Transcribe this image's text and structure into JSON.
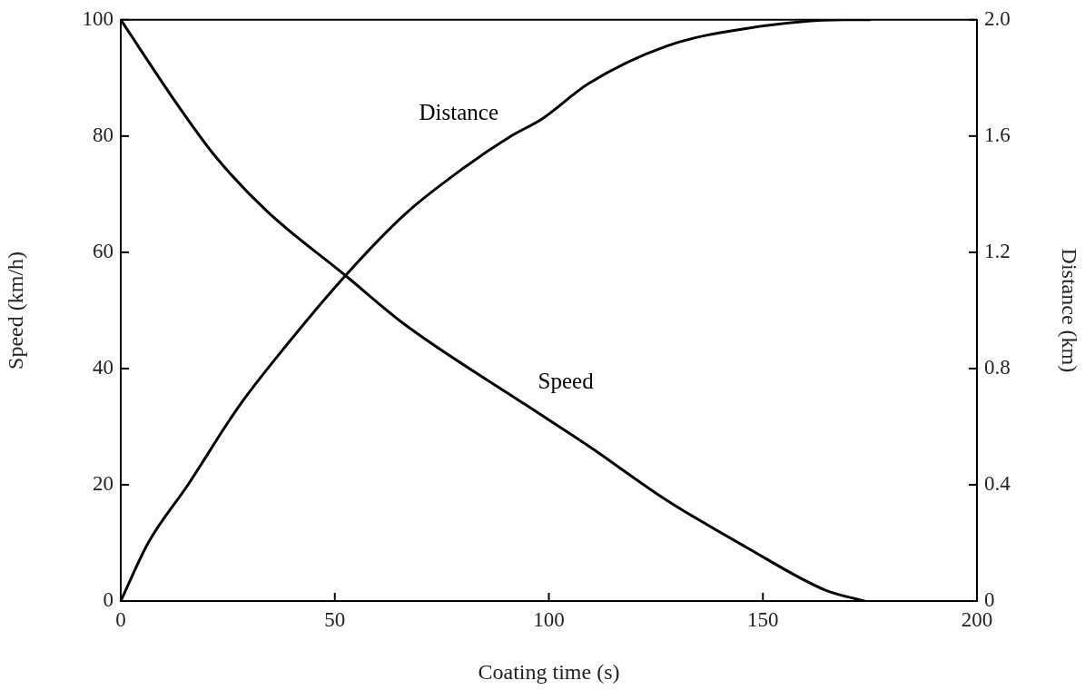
{
  "chart_data": {
    "type": "line",
    "xlabel": "Coating time (s)",
    "ylabel": "Speed (km/h)",
    "y2label": "Distance (km)",
    "xlim": [
      0,
      200
    ],
    "xticks": [
      0,
      50,
      100,
      150,
      200
    ],
    "ylim": [
      0,
      100
    ],
    "yticks": [
      0,
      20,
      40,
      60,
      80,
      100
    ],
    "y2lim": [
      0,
      2.0
    ],
    "y2ticks": [
      {
        "value": 0,
        "label": "0"
      },
      {
        "value": 0.4,
        "label": "0.4"
      },
      {
        "value": 0.8,
        "label": "0.8"
      },
      {
        "value": 1.2,
        "label": "1.2"
      },
      {
        "value": 1.6,
        "label": "1.6"
      },
      {
        "value": 2.0,
        "label": "2.0"
      }
    ],
    "grid": false,
    "legend": false,
    "marker": "none",
    "line_style": "solid",
    "series": [
      {
        "name": "Speed",
        "color": "#000000",
        "x": [
          0,
          13.8,
          22.1,
          34.1,
          52.5,
          66.3,
          94.5,
          109.2,
          127.6,
          146,
          164.5,
          173.7
        ],
        "values": [
          100,
          84.8,
          76.5,
          67.1,
          56,
          47.6,
          33.8,
          26.7,
          17.3,
          9.3,
          1.9,
          0
        ]
      },
      {
        "name": "Distance",
        "color": "#000000",
        "axis": "y2",
        "x": [
          0,
          6.4,
          15.7,
          27.6,
          38.7,
          52.5,
          66.3,
          80.1,
          91.2,
          98.5,
          109.2,
          127.6,
          146,
          169,
          175
        ],
        "values": [
          0,
          0.2,
          0.4,
          0.67,
          0.88,
          1.12,
          1.33,
          1.49,
          1.6,
          1.66,
          1.78,
          1.91,
          1.97,
          2.0,
          2.0
        ]
      }
    ]
  }
}
